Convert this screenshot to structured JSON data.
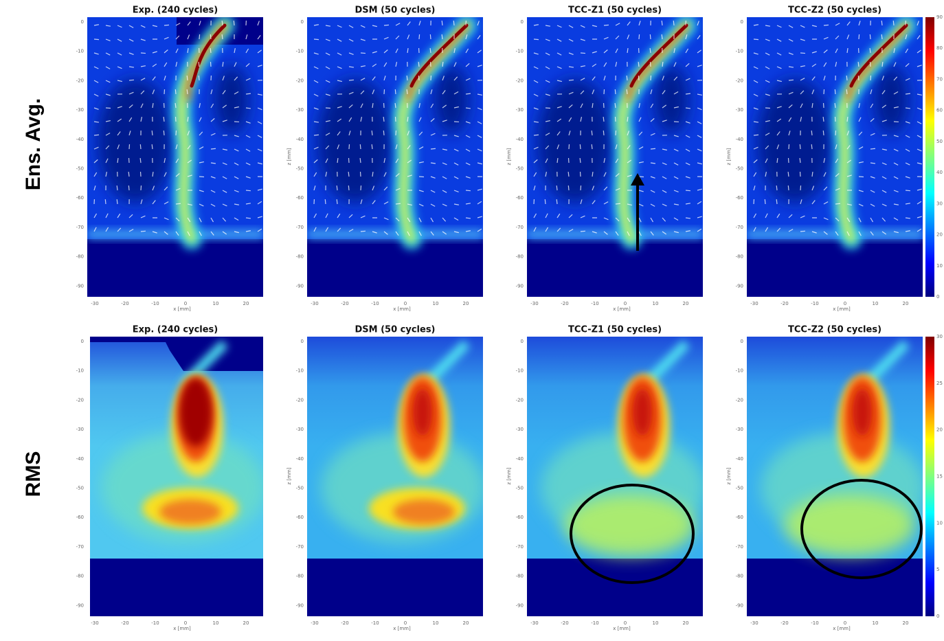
{
  "row_labels": [
    "Ens. Avg.",
    "RMS"
  ],
  "panel_titles": [
    "Exp. (240 cycles)",
    "DSM (50 cycles)",
    "TCC-Z1 (50 cycles)",
    "TCC-Z2 (50 cycles)"
  ],
  "x_label": "x [mm]",
  "y_label": "z [mm]",
  "x_ticks": [
    "-30",
    "-20",
    "-10",
    "0",
    "10",
    "20"
  ],
  "y_ticks": [
    "0",
    "-10",
    "-20",
    "-30",
    "-40",
    "-50",
    "-60",
    "-70",
    "-80",
    "-90"
  ],
  "colorbars": [
    {
      "ticks": [
        "0",
        "10",
        "20",
        "30",
        "40",
        "50",
        "60",
        "70",
        "80",
        "90"
      ]
    },
    {
      "ticks": [
        "0",
        "5",
        "10",
        "15",
        "20",
        "25",
        "30"
      ]
    }
  ]
}
